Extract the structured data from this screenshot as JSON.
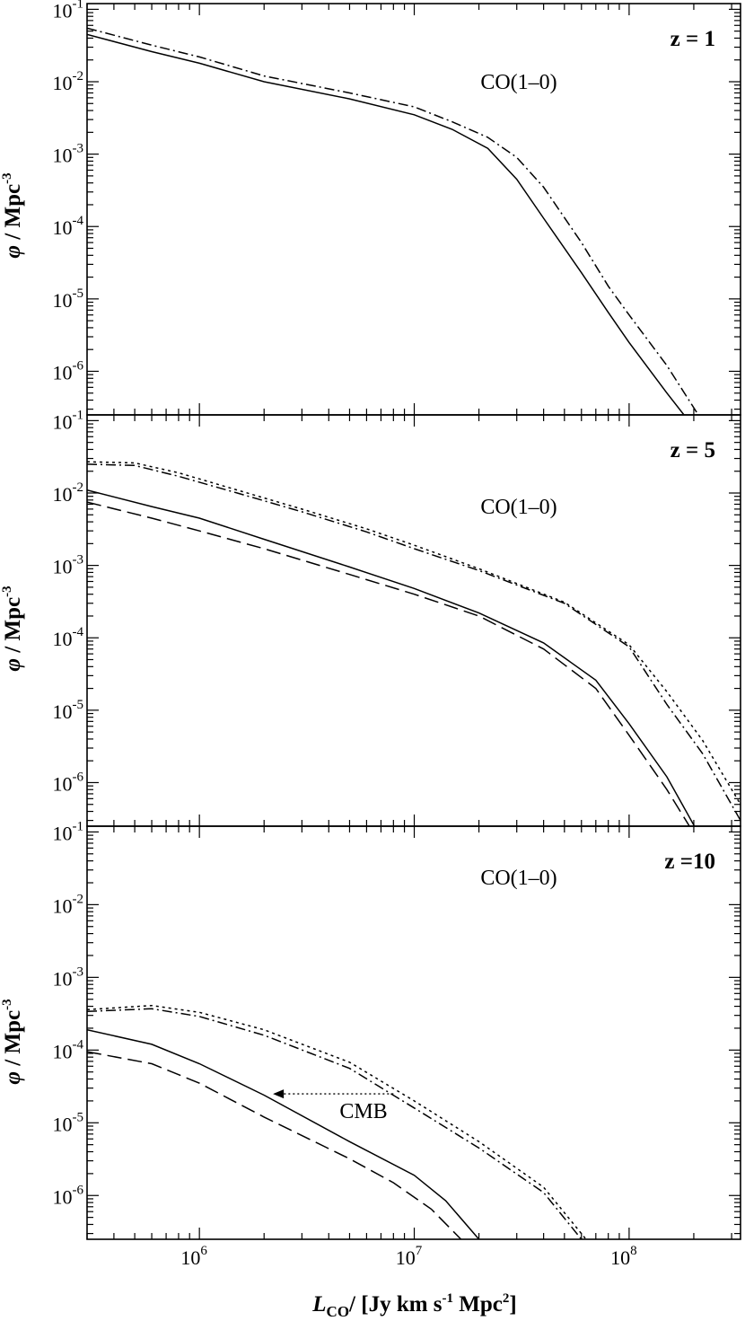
{
  "figure": {
    "xlabel_main": "L",
    "xlabel_sub": "CO",
    "xlabel_rest": "/ [Jy km s",
    "xlabel_sup1": "-1",
    "xlabel_rest2": " Mpc",
    "xlabel_sup2": "2",
    "xlabel_end": "]",
    "ylabel_phi": "φ",
    "ylabel_rest": " / Mpc",
    "ylabel_sup": "-3",
    "cmb_label": "CMB"
  },
  "chart_data": [
    {
      "type": "line",
      "panel": "top",
      "redshift_label": "z = 1",
      "annotation": "CO(1–0)",
      "xscale": "log",
      "yscale": "log",
      "xlim": [
        300000,
        330000000
      ],
      "ylim": [
        2.5e-07,
        0.12
      ],
      "xticks": [
        {
          "v": 1000000,
          "base": "10",
          "exp": "6"
        },
        {
          "v": 10000000,
          "base": "10",
          "exp": "7"
        },
        {
          "v": 100000000,
          "base": "10",
          "exp": "8"
        }
      ],
      "yticks": [
        {
          "v": 0.1,
          "base": "10",
          "exp": "-1"
        },
        {
          "v": 0.01,
          "base": "10",
          "exp": "-2"
        },
        {
          "v": 0.001,
          "base": "10",
          "exp": "-3"
        },
        {
          "v": 0.0001,
          "base": "10",
          "exp": "-4"
        },
        {
          "v": 1e-05,
          "base": "10",
          "exp": "-5"
        },
        {
          "v": 1e-06,
          "base": "10",
          "exp": "-6"
        }
      ],
      "series": [
        {
          "style": "solid",
          "x": [
            300000,
            600000,
            1000000,
            2000000,
            5000000,
            10000000,
            15000000,
            22000000,
            30000000,
            40000000,
            60000000,
            80000000,
            100000000,
            150000000,
            180000000
          ],
          "y": [
            0.045,
            0.026,
            0.018,
            0.01,
            0.0058,
            0.0035,
            0.0022,
            0.0012,
            0.00045,
            0.00013,
            2.3e-05,
            6.5e-06,
            2.5e-06,
            5e-07,
            2.5e-07
          ]
        },
        {
          "style": "dashdot",
          "x": [
            300000,
            600000,
            1000000,
            2000000,
            5000000,
            10000000,
            15000000,
            22000000,
            30000000,
            40000000,
            60000000,
            80000000,
            100000000,
            150000000,
            210000000
          ],
          "y": [
            0.055,
            0.032,
            0.022,
            0.012,
            0.007,
            0.0045,
            0.0028,
            0.0017,
            0.0009,
            0.00035,
            6e-05,
            1.5e-05,
            6e-06,
            1.2e-06,
            2.5e-07
          ]
        }
      ]
    },
    {
      "type": "line",
      "panel": "middle",
      "redshift_label": "z = 5",
      "annotation": "CO(1–0)",
      "xscale": "log",
      "yscale": "log",
      "xlim": [
        300000,
        330000000
      ],
      "ylim": [
        2.5e-07,
        0.12
      ],
      "xticks": [
        {
          "v": 1000000,
          "base": "10",
          "exp": "6"
        },
        {
          "v": 10000000,
          "base": "10",
          "exp": "7"
        },
        {
          "v": 100000000,
          "base": "10",
          "exp": "8"
        }
      ],
      "yticks": [
        {
          "v": 0.1,
          "base": "10",
          "exp": "-1"
        },
        {
          "v": 0.01,
          "base": "10",
          "exp": "-2"
        },
        {
          "v": 0.001,
          "base": "10",
          "exp": "-3"
        },
        {
          "v": 0.0001,
          "base": "10",
          "exp": "-4"
        },
        {
          "v": 1e-05,
          "base": "10",
          "exp": "-5"
        },
        {
          "v": 1e-06,
          "base": "10",
          "exp": "-6"
        }
      ],
      "series": [
        {
          "style": "solid",
          "x": [
            300000,
            600000,
            1000000,
            2000000,
            5000000,
            10000000,
            20000000,
            40000000,
            70000000,
            100000000,
            150000000,
            210000000
          ],
          "y": [
            0.011,
            0.0065,
            0.0045,
            0.0023,
            0.00095,
            0.00048,
            0.00022,
            8.5e-05,
            2.6e-05,
            6.5e-06,
            1.2e-06,
            2e-07
          ]
        },
        {
          "style": "dashed",
          "x": [
            300000,
            600000,
            1000000,
            2000000,
            5000000,
            10000000,
            20000000,
            40000000,
            70000000,
            100000000,
            150000000,
            200000000
          ],
          "y": [
            0.0075,
            0.0045,
            0.003,
            0.0017,
            0.00075,
            0.0004,
            0.0002,
            7e-05,
            2e-05,
            4.5e-06,
            8e-07,
            2e-07
          ]
        },
        {
          "style": "dashdot",
          "x": [
            300000,
            500000,
            800000,
            1500000,
            3000000,
            6000000,
            10000000,
            20000000,
            50000000,
            100000000,
            150000000,
            220000000,
            330000000
          ],
          "y": [
            0.025,
            0.024,
            0.017,
            0.01,
            0.0055,
            0.0029,
            0.0017,
            0.00085,
            0.0003,
            7.5e-05,
            1.2e-05,
            2.5e-06,
            3e-07
          ]
        },
        {
          "style": "dotted",
          "x": [
            300000,
            500000,
            800000,
            1500000,
            3000000,
            6000000,
            10000000,
            20000000,
            50000000,
            100000000,
            150000000,
            220000000,
            330000000
          ],
          "y": [
            0.027,
            0.026,
            0.019,
            0.011,
            0.006,
            0.0032,
            0.0019,
            0.0009,
            0.00031,
            8e-05,
            1.8e-05,
            3.8e-06,
            5e-07
          ]
        }
      ]
    },
    {
      "type": "line",
      "panel": "bottom",
      "redshift_label": "z =10",
      "annotation": "CO(1–0)",
      "xscale": "log",
      "yscale": "log",
      "xlim": [
        300000,
        330000000
      ],
      "ylim": [
        2.5e-07,
        0.12
      ],
      "xticks": [
        {
          "v": 1000000,
          "base": "10",
          "exp": "6"
        },
        {
          "v": 10000000,
          "base": "10",
          "exp": "7"
        },
        {
          "v": 100000000,
          "base": "10",
          "exp": "8"
        }
      ],
      "yticks": [
        {
          "v": 0.1,
          "base": "10",
          "exp": "-1"
        },
        {
          "v": 0.01,
          "base": "10",
          "exp": "-2"
        },
        {
          "v": 0.001,
          "base": "10",
          "exp": "-3"
        },
        {
          "v": 0.0001,
          "base": "10",
          "exp": "-4"
        },
        {
          "v": 1e-05,
          "base": "10",
          "exp": "-5"
        },
        {
          "v": 1e-06,
          "base": "10",
          "exp": "-6"
        }
      ],
      "cmb_arrow": {
        "from": [
          8000000,
          2.5e-05
        ],
        "to": [
          2200000,
          2.5e-05
        ]
      },
      "series": [
        {
          "style": "solid",
          "x": [
            300000,
            600000,
            1000000,
            2000000,
            5000000,
            10000000,
            14000000,
            20000000
          ],
          "y": [
            0.00019,
            0.00012,
            6.5e-05,
            2.4e-05,
            5.5e-06,
            1.9e-06,
            8.5e-07,
            2.5e-07
          ]
        },
        {
          "style": "dashed",
          "x": [
            300000,
            600000,
            1000000,
            2000000,
            5000000,
            8000000,
            12000000,
            16500000
          ],
          "y": [
            9.5e-05,
            6.5e-05,
            3.5e-05,
            1.2e-05,
            3.2e-06,
            1.5e-06,
            6.5e-07,
            2.5e-07
          ]
        },
        {
          "style": "dashdot",
          "x": [
            300000,
            600000,
            1000000,
            2000000,
            5000000,
            10000000,
            20000000,
            40000000,
            60000000
          ],
          "y": [
            0.00034,
            0.00037,
            0.00029,
            0.00016,
            5.6e-05,
            1.6e-05,
            4.5e-06,
            1.1e-06,
            2.5e-07
          ]
        },
        {
          "style": "dotted",
          "x": [
            300000,
            600000,
            1000000,
            2000000,
            5000000,
            10000000,
            20000000,
            40000000,
            63000000
          ],
          "y": [
            0.00036,
            0.00041,
            0.00033,
            0.00019,
            6.8e-05,
            2e-05,
            5.5e-06,
            1.3e-06,
            2.5e-07
          ]
        }
      ]
    }
  ]
}
